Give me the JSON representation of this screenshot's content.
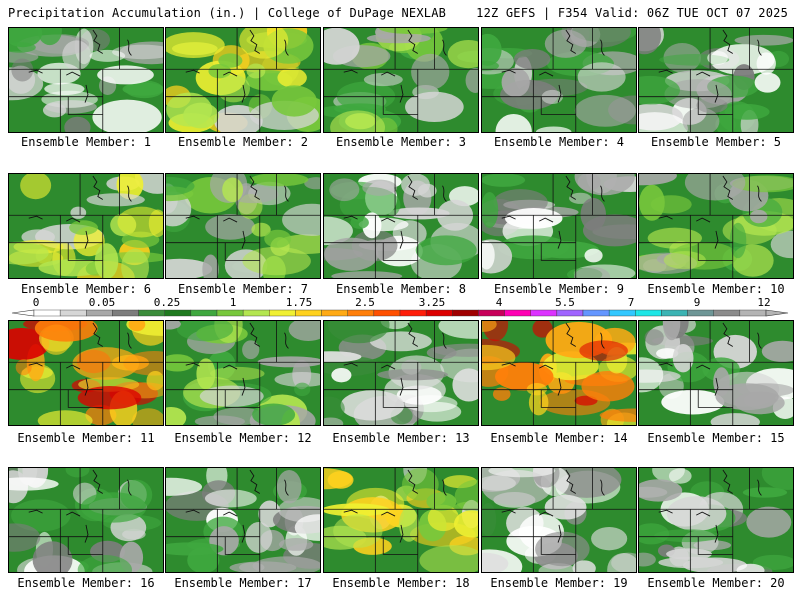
{
  "header": {
    "title_left": "Precipitation Accumulation (in.) | College of DuPage NEXLAB",
    "title_right": "12Z GEFS | F354 Valid: 06Z TUE OCT 07 2025"
  },
  "members": [
    {
      "label": "Ensemble Member: 1",
      "intensity": "low"
    },
    {
      "label": "Ensemble Member: 2",
      "intensity": "high"
    },
    {
      "label": "Ensemble Member: 3",
      "intensity": "medium"
    },
    {
      "label": "Ensemble Member: 4",
      "intensity": "low"
    },
    {
      "label": "Ensemble Member: 5",
      "intensity": "low"
    },
    {
      "label": "Ensemble Member: 6",
      "intensity": "high"
    },
    {
      "label": "Ensemble Member: 7",
      "intensity": "medium"
    },
    {
      "label": "Ensemble Member: 8",
      "intensity": "low"
    },
    {
      "label": "Ensemble Member: 9",
      "intensity": "low"
    },
    {
      "label": "Ensemble Member: 10",
      "intensity": "medium"
    },
    {
      "label": "Ensemble Member: 11",
      "intensity": "very-high"
    },
    {
      "label": "Ensemble Member: 12",
      "intensity": "medium"
    },
    {
      "label": "Ensemble Member: 13",
      "intensity": "dry"
    },
    {
      "label": "Ensemble Member: 14",
      "intensity": "very-high"
    },
    {
      "label": "Ensemble Member: 15",
      "intensity": "low"
    },
    {
      "label": "Ensemble Member: 16",
      "intensity": "low"
    },
    {
      "label": "Ensemble Member: 17",
      "intensity": "low"
    },
    {
      "label": "Ensemble Member: 18",
      "intensity": "high"
    },
    {
      "label": "Ensemble Member: 19",
      "intensity": "dry"
    },
    {
      "label": "Ensemble Member: 20",
      "intensity": "low"
    }
  ],
  "colorbar": {
    "ticks": [
      "0",
      "0.05",
      "0.25",
      "1",
      "1.75",
      "2.5",
      "3.25",
      "4",
      "5.5",
      "7",
      "9",
      "12"
    ],
    "colors": [
      "#ffffff",
      "#d6d6d6",
      "#a8a8a8",
      "#7d7d7d",
      "#3a8c3a",
      "#1f7a1f",
      "#3fa83f",
      "#78c83c",
      "#b4e650",
      "#f0f032",
      "#ffd21e",
      "#ffaa14",
      "#ff7f0a",
      "#ff5000",
      "#ff1e0a",
      "#dc0000",
      "#a00000",
      "#c8005a",
      "#ff00b4",
      "#dc32ff",
      "#a064ff",
      "#6496ff",
      "#32c8ff",
      "#1ee6e6",
      "#3cb4b4",
      "#6e9696",
      "#8c8c8c",
      "#b4b4b4"
    ]
  }
}
